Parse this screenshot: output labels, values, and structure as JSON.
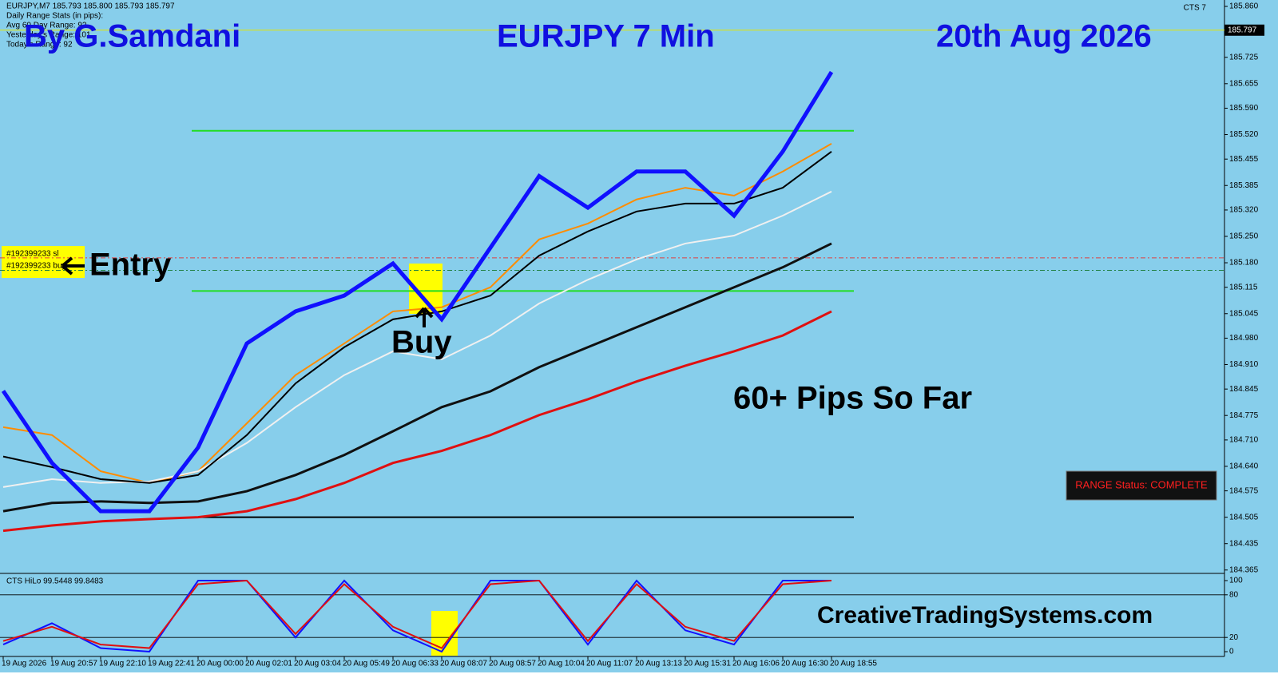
{
  "chart_data": {
    "type": "line",
    "symbol_line": "EURJPY,M7  185.793 185.800 185.793 185.797",
    "stats_title": "Daily Range Stats (in pips):",
    "stats": [
      "Avg 60 Day Range: 92",
      "Yesterday's Range: 101",
      "Today's Range: 92"
    ],
    "indicator_name": "CTS 7",
    "title": "By G.Samdani",
    "subtitle": "EURJPY 7 Min",
    "date_text": "20th Aug 2026",
    "annotations": {
      "entry": "Entry",
      "buy": "Buy",
      "result": "60+ Pips So Far",
      "website": "CreativeTradingSystems.com",
      "range_status": "RANGE Status: COMPLETE"
    },
    "order_labels": [
      "#192399233 sl",
      "#192399233 buy"
    ],
    "current_price": 185.797,
    "categories": [
      "19 Aug 2026",
      "19 Aug 20:57",
      "19 Aug 22:10",
      "19 Aug 22:41",
      "20 Aug 00:00",
      "20 Aug 02:01",
      "20 Aug 03:04",
      "20 Aug 05:49",
      "20 Aug 06:33",
      "20 Aug 08:07",
      "20 Aug 08:57",
      "20 Aug 10:04",
      "20 Aug 11:07",
      "20 Aug 13:13",
      "20 Aug 15:31",
      "20 Aug 16:06",
      "20 Aug 16:30",
      "20 Aug 18:55"
    ],
    "series": [
      {
        "color": "#ff8c00",
        "values": [
          184.744,
          184.723,
          184.627,
          184.596,
          184.627,
          184.754,
          184.882,
          184.966,
          185.051,
          185.062,
          185.115,
          185.242,
          185.284,
          185.348,
          185.379,
          185.358,
          185.422,
          185.496
        ]
      },
      {
        "color": "#f0f0f0",
        "values": [
          184.585,
          184.606,
          184.596,
          184.6,
          184.627,
          184.702,
          184.797,
          184.882,
          184.945,
          184.924,
          184.987,
          185.072,
          185.135,
          185.189,
          185.231,
          185.252,
          185.305,
          185.369
        ]
      },
      {
        "color": "#000000",
        "values": [
          184.666,
          184.638,
          184.606,
          184.596,
          184.617,
          184.723,
          184.86,
          184.956,
          185.03,
          185.051,
          185.093,
          185.199,
          185.263,
          185.316,
          185.337,
          185.337,
          185.379,
          185.475
        ]
      },
      {
        "color": "#101010",
        "values": [
          184.521,
          184.543,
          184.547,
          184.543,
          184.547,
          184.574,
          184.617,
          184.67,
          184.733,
          184.797,
          184.839,
          184.903,
          184.956,
          185.009,
          185.062,
          185.115,
          185.168,
          185.231
        ]
      },
      {
        "color": "#e01010",
        "values": [
          184.469,
          184.483,
          184.494,
          184.5,
          184.505,
          184.521,
          184.553,
          184.596,
          184.649,
          184.681,
          184.723,
          184.776,
          184.818,
          184.865,
          184.907,
          184.945,
          184.987,
          185.051
        ]
      },
      {
        "color": "#1010ff",
        "values": [
          184.84,
          184.649,
          184.521,
          184.521,
          184.69,
          184.966,
          185.051,
          185.093,
          185.178,
          185.03,
          185.22,
          185.41,
          185.326,
          185.422,
          185.422,
          185.305,
          185.475,
          185.686
        ]
      }
    ],
    "levels": [
      {
        "value": 185.53,
        "color": "#22dd22",
        "dash": false
      },
      {
        "value": 185.105,
        "color": "#22dd22",
        "dash": false
      },
      {
        "value": 184.505,
        "color": "#000000",
        "dash": false
      },
      {
        "value": 185.193,
        "color": "#e04040",
        "dash": true
      },
      {
        "value": 185.16,
        "color": "#208040",
        "dash": true
      }
    ],
    "ylim": [
      184.356,
      185.877
    ],
    "yticks": [
      {
        "value": 185.86,
        "label": "185.860"
      },
      {
        "value": 185.725,
        "label": "185.725"
      },
      {
        "value": 185.655,
        "label": "185.655"
      },
      {
        "value": 185.59,
        "label": "185.590"
      },
      {
        "value": 185.52,
        "label": "185.520"
      },
      {
        "value": 185.455,
        "label": "185.455"
      },
      {
        "value": 185.385,
        "label": "185.385"
      },
      {
        "value": 185.32,
        "label": "185.320"
      },
      {
        "value": 185.25,
        "label": "185.250"
      },
      {
        "value": 185.18,
        "label": "185.180"
      },
      {
        "value": 185.115,
        "label": "185.115"
      },
      {
        "value": 185.045,
        "label": "185.045"
      },
      {
        "value": 184.98,
        "label": "184.980"
      },
      {
        "value": 184.91,
        "label": "184.910"
      },
      {
        "value": 184.845,
        "label": "184.845"
      },
      {
        "value": 184.775,
        "label": "184.775"
      },
      {
        "value": 184.71,
        "label": "184.710"
      },
      {
        "value": 184.64,
        "label": "184.640"
      },
      {
        "value": 184.575,
        "label": "184.575"
      },
      {
        "value": 184.505,
        "label": "184.505"
      },
      {
        "value": 184.435,
        "label": "184.435"
      },
      {
        "value": 184.365,
        "label": "184.365"
      }
    ],
    "oscillator": {
      "name": "CTS HiLo 99.5448 99.8483",
      "ylim": [
        0,
        100
      ],
      "yticks": [
        0,
        20,
        80,
        100
      ],
      "series": [
        {
          "color": "#1010ff",
          "values": [
            10,
            40,
            5,
            0,
            100,
            100,
            20,
            100,
            30,
            0,
            100,
            100,
            10,
            100,
            30,
            10,
            100,
            100
          ]
        },
        {
          "color": "#e01010",
          "values": [
            15,
            35,
            10,
            5,
            95,
            100,
            25,
            95,
            35,
            5,
            95,
            100,
            15,
            95,
            35,
            15,
            95,
            100
          ]
        }
      ]
    }
  }
}
